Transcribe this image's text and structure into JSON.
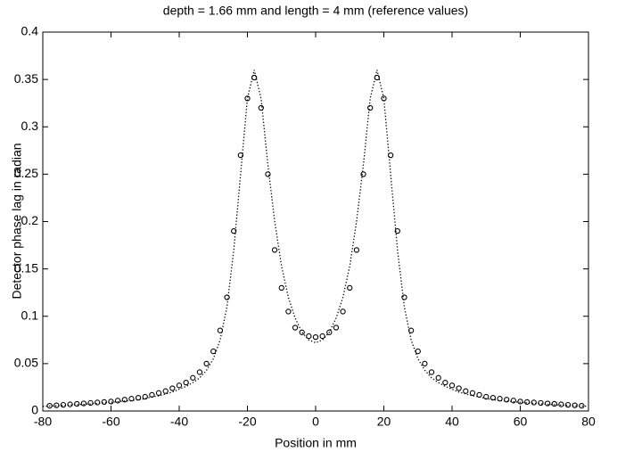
{
  "chart_data": {
    "type": "line",
    "title": "depth = 1.66 mm and length = 4 mm (reference values)",
    "x_label": "Position in mm",
    "y_label": "Detector phase lag in radian",
    "xlim": [
      -80,
      80
    ],
    "xticks": [
      -80,
      -60,
      -40,
      -20,
      0,
      20,
      40,
      60,
      80
    ],
    "ylim": [
      0,
      0.4
    ],
    "yticks": [
      0,
      0.05,
      0.1,
      0.15,
      0.2,
      0.25,
      0.3,
      0.35,
      0.4
    ],
    "box": true,
    "series": [
      {
        "color": "#000000",
        "marker": "circle",
        "line_style": "none",
        "x": [
          -78,
          -76,
          -74,
          -72,
          -70,
          -68,
          -66,
          -64,
          -62,
          -60,
          -58,
          -56,
          -54,
          -52,
          -50,
          -48,
          -46,
          -44,
          -42,
          -40,
          -38,
          -36,
          -34,
          -32,
          -30,
          -28,
          -26,
          -24,
          -22,
          -20,
          -18,
          -16,
          -14,
          -12,
          -10,
          -8,
          -6,
          -4,
          -2,
          0,
          2,
          4,
          6,
          8,
          10,
          12,
          14,
          16,
          18,
          20,
          22,
          24,
          26,
          28,
          30,
          32,
          34,
          36,
          38,
          40,
          42,
          44,
          46,
          48,
          50,
          52,
          54,
          56,
          58,
          60,
          62,
          64,
          66,
          68,
          70,
          72,
          74,
          76,
          78
        ],
        "values": [
          0.0055,
          0.006,
          0.0065,
          0.007,
          0.0075,
          0.008,
          0.0085,
          0.009,
          0.0095,
          0.01,
          0.011,
          0.012,
          0.013,
          0.014,
          0.015,
          0.017,
          0.019,
          0.021,
          0.024,
          0.027,
          0.03,
          0.035,
          0.041,
          0.05,
          0.063,
          0.085,
          0.12,
          0.19,
          0.27,
          0.33,
          0.352,
          0.32,
          0.25,
          0.17,
          0.13,
          0.105,
          0.088,
          0.083,
          0.079,
          0.078,
          0.079,
          0.083,
          0.088,
          0.105,
          0.13,
          0.17,
          0.25,
          0.32,
          0.352,
          0.33,
          0.27,
          0.19,
          0.12,
          0.085,
          0.063,
          0.05,
          0.041,
          0.035,
          0.03,
          0.027,
          0.024,
          0.021,
          0.019,
          0.017,
          0.015,
          0.014,
          0.013,
          0.012,
          0.011,
          0.01,
          0.0095,
          0.009,
          0.0085,
          0.008,
          0.0075,
          0.007,
          0.0065,
          0.006,
          0.0055
        ]
      },
      {
        "color": "#000000",
        "marker": "none",
        "line_style": "dotted",
        "x": [
          -80,
          -78,
          -76,
          -74,
          -72,
          -70,
          -68,
          -66,
          -64,
          -62,
          -60,
          -58,
          -56,
          -54,
          -52,
          -50,
          -48,
          -46,
          -44,
          -42,
          -40,
          -38,
          -36,
          -34,
          -32,
          -30,
          -28,
          -26,
          -24,
          -22,
          -20,
          -18,
          -16,
          -14,
          -12,
          -10,
          -8,
          -6,
          -4,
          -2,
          0,
          2,
          4,
          6,
          8,
          10,
          12,
          14,
          16,
          18,
          20,
          22,
          24,
          26,
          28,
          30,
          32,
          34,
          36,
          38,
          40,
          42,
          44,
          46,
          48,
          50,
          52,
          54,
          56,
          58,
          60,
          62,
          64,
          66,
          68,
          70,
          72,
          74,
          76,
          78,
          80
        ],
        "values": [
          0.005,
          0.0052,
          0.0055,
          0.0058,
          0.0062,
          0.0066,
          0.007,
          0.0075,
          0.008,
          0.0086,
          0.0092,
          0.0098,
          0.0105,
          0.011,
          0.012,
          0.013,
          0.015,
          0.016,
          0.018,
          0.02,
          0.023,
          0.026,
          0.03,
          0.035,
          0.043,
          0.055,
          0.075,
          0.11,
          0.17,
          0.25,
          0.33,
          0.36,
          0.33,
          0.26,
          0.2,
          0.153,
          0.12,
          0.098,
          0.083,
          0.075,
          0.072,
          0.075,
          0.083,
          0.098,
          0.12,
          0.153,
          0.2,
          0.26,
          0.33,
          0.36,
          0.33,
          0.25,
          0.17,
          0.11,
          0.075,
          0.055,
          0.043,
          0.035,
          0.03,
          0.026,
          0.023,
          0.02,
          0.018,
          0.016,
          0.015,
          0.013,
          0.012,
          0.011,
          0.0105,
          0.0098,
          0.0092,
          0.0086,
          0.008,
          0.0075,
          0.007,
          0.0066,
          0.0062,
          0.0058,
          0.0055,
          0.0052,
          0.005
        ]
      }
    ]
  }
}
